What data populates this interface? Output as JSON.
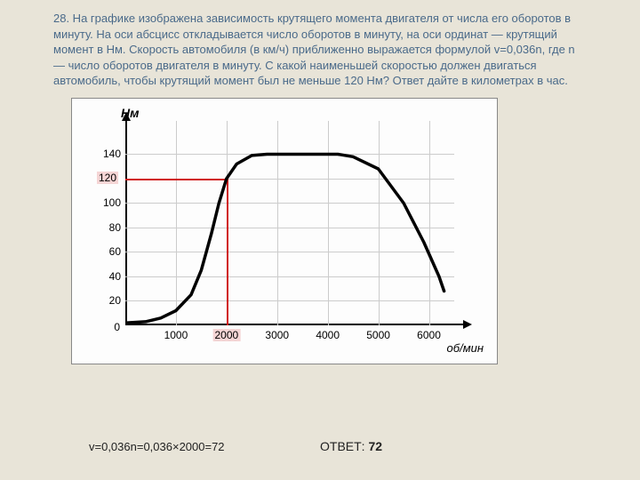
{
  "problem": {
    "text": "28. На графике изображена зависимость крутящего момента двигателя от числа его оборотов в минуту. На оси абсцисс откладывается число оборотов в минуту, на оси ординат — крутящий момент в Нм. Скорость автомобиля (в км/ч) приближенно выражается формулой v=0,036n, где n — число оборотов двигателя в минуту. С какой наименьшей скоростью должен двигаться автомобиль, чтобы крутящий момент был не меньше 120 Нм? Ответ дайте в километрах в час."
  },
  "chart": {
    "y_label": "Нм",
    "x_label": "об/мин",
    "y_ticks": [
      {
        "v": 20,
        "label": "20"
      },
      {
        "v": 40,
        "label": "40"
      },
      {
        "v": 60,
        "label": "60"
      },
      {
        "v": 80,
        "label": "80"
      },
      {
        "v": 100,
        "label": "100"
      },
      {
        "v": 140,
        "label": "140"
      }
    ],
    "x_ticks": [
      {
        "v": 1000,
        "label": "1000"
      },
      {
        "v": 3000,
        "label": "3000"
      },
      {
        "v": 4000,
        "label": "4000"
      },
      {
        "v": 5000,
        "label": "5000"
      },
      {
        "v": 6000,
        "label": "6000"
      }
    ],
    "highlight_y": {
      "v": 120,
      "label": "120"
    },
    "highlight_x": {
      "v": 2000,
      "label": "2000"
    },
    "y_max": 160,
    "x_max": 6500,
    "origin_label": "0",
    "curve_points": [
      [
        0,
        2
      ],
      [
        400,
        3
      ],
      [
        700,
        6
      ],
      [
        1000,
        12
      ],
      [
        1300,
        25
      ],
      [
        1500,
        45
      ],
      [
        1700,
        75
      ],
      [
        1850,
        100
      ],
      [
        2000,
        120
      ],
      [
        2200,
        132
      ],
      [
        2500,
        139
      ],
      [
        2800,
        140
      ],
      [
        4200,
        140
      ],
      [
        4500,
        138
      ],
      [
        5000,
        128
      ],
      [
        5500,
        100
      ],
      [
        5900,
        68
      ],
      [
        6200,
        40
      ],
      [
        6300,
        28
      ]
    ],
    "colors": {
      "grid": "#cccccc",
      "axis": "#000000",
      "curve": "#000000",
      "highlight_line": "#d01818",
      "highlight_bg": "#f5d5d5",
      "chart_bg": "#fdfdfd",
      "page_bg": "#e8e4d8",
      "text": "#4a6a8a"
    }
  },
  "formula": "v=0,036n=0,036×2000=72",
  "answer_label": "ОТВЕТ:",
  "answer_value": "72"
}
